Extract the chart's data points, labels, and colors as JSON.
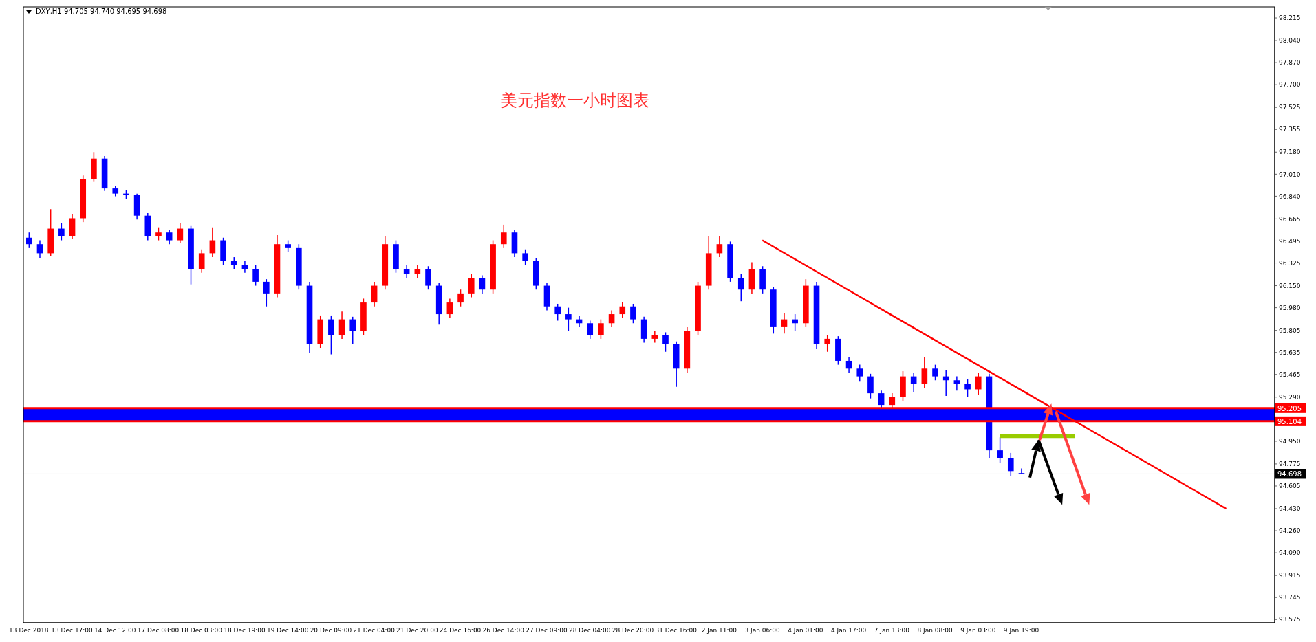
{
  "chart_data": {
    "type": "candlestick",
    "title": "美元指数一小时图表",
    "subtitle": "DXY,H1 94.705 94.740 94.695 94.698",
    "categories": [
      "13 Dec 2018",
      null,
      null,
      null,
      "13 Dec 17:00",
      null,
      null,
      null,
      "14 Dec 12:00",
      null,
      null,
      null,
      "17 Dec 08:00",
      null,
      null,
      null,
      "18 Dec 03:00",
      null,
      null,
      null,
      "18 Dec 19:00",
      null,
      null,
      null,
      "19 Dec 14:00",
      null,
      null,
      null,
      "20 Dec 09:00",
      null,
      null,
      null,
      "21 Dec 04:00",
      null,
      null,
      null,
      "21 Dec 20:00",
      null,
      null,
      null,
      "24 Dec 16:00",
      null,
      null,
      null,
      "26 Dec 14:00",
      null,
      null,
      null,
      "27 Dec 09:00",
      null,
      null,
      null,
      "28 Dec 04:00",
      null,
      null,
      null,
      "28 Dec 20:00",
      null,
      null,
      null,
      "31 Dec 16:00",
      null,
      null,
      null,
      "2 Jan 11:00",
      null,
      null,
      null,
      "3 Jan 06:00",
      null,
      null,
      null,
      "4 Jan 01:00",
      null,
      null,
      null,
      "4 Jan 17:00",
      null,
      null,
      null,
      "7 Jan 13:00",
      null,
      null,
      null,
      "8 Jan 08:00",
      null,
      null,
      null,
      "9 Jan 03:00",
      null,
      null,
      null,
      "9 Jan 19:00",
      null,
      null,
      null,
      null,
      null,
      null,
      null,
      null,
      null,
      null,
      null,
      null,
      null,
      null,
      null,
      null,
      null,
      null,
      null,
      null,
      null,
      null,
      null
    ],
    "ohlc": [
      [
        96.52,
        96.56,
        96.44,
        96.47
      ],
      [
        96.47,
        96.5,
        96.36,
        96.4
      ],
      [
        96.4,
        96.74,
        96.38,
        96.59
      ],
      [
        96.59,
        96.63,
        96.5,
        96.53
      ],
      [
        96.53,
        96.7,
        96.51,
        96.67
      ],
      [
        96.67,
        97.0,
        96.64,
        96.97
      ],
      [
        96.97,
        97.18,
        96.95,
        97.13
      ],
      [
        97.13,
        97.15,
        96.88,
        96.9
      ],
      [
        96.9,
        96.92,
        96.84,
        96.86
      ],
      [
        96.86,
        96.89,
        96.82,
        96.85
      ],
      [
        96.85,
        96.86,
        96.66,
        96.69
      ],
      [
        96.69,
        96.71,
        96.5,
        96.53
      ],
      [
        96.53,
        96.6,
        96.5,
        96.56
      ],
      [
        96.56,
        96.58,
        96.47,
        96.5
      ],
      [
        96.5,
        96.63,
        96.48,
        96.59
      ],
      [
        96.59,
        96.61,
        96.16,
        96.28
      ],
      [
        96.28,
        96.43,
        96.25,
        96.4
      ],
      [
        96.4,
        96.6,
        96.37,
        96.5
      ],
      [
        96.5,
        96.52,
        96.31,
        96.34
      ],
      [
        96.34,
        96.37,
        96.28,
        96.31
      ],
      [
        96.31,
        96.34,
        96.25,
        96.28
      ],
      [
        96.28,
        96.31,
        96.15,
        96.18
      ],
      [
        96.18,
        96.2,
        95.99,
        96.09
      ],
      [
        96.09,
        96.54,
        96.06,
        96.47
      ],
      [
        96.47,
        96.5,
        96.41,
        96.44
      ],
      [
        96.44,
        96.47,
        96.12,
        96.15
      ],
      [
        96.15,
        96.18,
        95.63,
        95.7
      ],
      [
        95.7,
        95.92,
        95.67,
        95.89
      ],
      [
        95.89,
        95.92,
        95.62,
        95.77
      ],
      [
        95.77,
        95.95,
        95.74,
        95.89
      ],
      [
        95.89,
        95.91,
        95.7,
        95.8
      ],
      [
        95.8,
        96.05,
        95.77,
        96.02
      ],
      [
        96.02,
        96.18,
        95.99,
        96.15
      ],
      [
        96.15,
        96.53,
        96.12,
        96.47
      ],
      [
        96.47,
        96.5,
        96.25,
        96.28
      ],
      [
        96.28,
        96.31,
        96.21,
        96.24
      ],
      [
        96.24,
        96.31,
        96.21,
        96.28
      ],
      [
        96.28,
        96.3,
        96.12,
        96.15
      ],
      [
        96.15,
        96.17,
        95.85,
        95.93
      ],
      [
        95.93,
        96.05,
        95.9,
        96.02
      ],
      [
        96.02,
        96.12,
        95.99,
        96.09
      ],
      [
        96.09,
        96.24,
        96.06,
        96.21
      ],
      [
        96.21,
        96.23,
        96.09,
        96.12
      ],
      [
        96.12,
        96.5,
        96.09,
        96.47
      ],
      [
        96.47,
        96.62,
        96.44,
        96.56
      ],
      [
        96.56,
        96.58,
        96.37,
        96.4
      ],
      [
        96.4,
        96.43,
        96.31,
        96.34
      ],
      [
        96.34,
        96.36,
        96.12,
        96.15
      ],
      [
        96.15,
        96.17,
        95.96,
        95.99
      ],
      [
        95.99,
        96.01,
        95.88,
        95.93
      ],
      [
        95.93,
        95.98,
        95.8,
        95.89
      ],
      [
        95.89,
        95.92,
        95.83,
        95.86
      ],
      [
        95.86,
        95.88,
        95.74,
        95.77
      ],
      [
        95.77,
        95.89,
        95.74,
        95.86
      ],
      [
        95.86,
        95.96,
        95.83,
        95.93
      ],
      [
        95.93,
        96.02,
        95.9,
        95.99
      ],
      [
        95.99,
        96.01,
        95.86,
        95.89
      ],
      [
        95.89,
        95.91,
        95.71,
        95.74
      ],
      [
        95.74,
        95.8,
        95.71,
        95.77
      ],
      [
        95.77,
        95.79,
        95.64,
        95.7
      ],
      [
        95.7,
        95.72,
        95.37,
        95.51
      ],
      [
        95.51,
        95.83,
        95.48,
        95.8
      ],
      [
        95.8,
        96.18,
        95.77,
        96.15
      ],
      [
        96.15,
        96.53,
        96.12,
        96.4
      ],
      [
        96.4,
        96.53,
        96.37,
        96.47
      ],
      [
        96.47,
        96.49,
        96.18,
        96.21
      ],
      [
        96.21,
        96.24,
        96.03,
        96.12
      ],
      [
        96.12,
        96.33,
        96.09,
        96.28
      ],
      [
        96.28,
        96.3,
        96.09,
        96.12
      ],
      [
        96.12,
        96.14,
        95.78,
        95.83
      ],
      [
        95.83,
        95.94,
        95.78,
        95.89
      ],
      [
        95.89,
        95.93,
        95.8,
        95.86
      ],
      [
        95.86,
        96.2,
        95.83,
        96.15
      ],
      [
        96.15,
        96.18,
        95.66,
        95.7
      ],
      [
        95.7,
        95.77,
        95.64,
        95.74
      ],
      [
        95.74,
        95.76,
        95.54,
        95.57
      ],
      [
        95.57,
        95.6,
        95.48,
        95.51
      ],
      [
        95.51,
        95.54,
        95.41,
        95.45
      ],
      [
        95.45,
        95.47,
        95.28,
        95.32
      ],
      [
        95.32,
        95.34,
        95.2,
        95.23
      ],
      [
        95.23,
        95.32,
        95.2,
        95.29
      ],
      [
        95.29,
        95.49,
        95.26,
        95.45
      ],
      [
        95.45,
        95.48,
        95.33,
        95.39
      ],
      [
        95.39,
        95.6,
        95.36,
        95.51
      ],
      [
        95.51,
        95.54,
        95.42,
        95.45
      ],
      [
        95.45,
        95.5,
        95.3,
        95.42
      ],
      [
        95.42,
        95.45,
        95.34,
        95.39
      ],
      [
        95.39,
        95.43,
        95.29,
        95.35
      ],
      [
        95.35,
        95.48,
        95.31,
        95.45
      ],
      [
        95.45,
        95.47,
        94.82,
        94.88
      ],
      [
        94.88,
        94.98,
        94.78,
        94.82
      ],
      [
        94.82,
        94.86,
        94.68,
        94.72
      ],
      [
        94.705,
        94.74,
        94.695,
        94.698
      ],
      null,
      null,
      null,
      null,
      null,
      null,
      null,
      null,
      null,
      null,
      null,
      null,
      null,
      null,
      null,
      null,
      null,
      null,
      null,
      null,
      null,
      null,
      null
    ],
    "colors": [
      "#0000ff",
      "#0000ff",
      "#ff0000",
      "#0000ff",
      "#ff0000",
      "#ff0000",
      "#ff0000",
      "#0000ff",
      "#0000ff",
      "#0000ff",
      "#0000ff",
      "#0000ff",
      "#ff0000",
      "#0000ff",
      "#ff0000",
      "#0000ff",
      "#ff0000",
      "#ff0000",
      "#0000ff",
      "#0000ff",
      "#0000ff",
      "#0000ff",
      "#0000ff",
      "#ff0000",
      "#0000ff",
      "#0000ff",
      "#0000ff",
      "#ff0000",
      "#0000ff",
      "#ff0000",
      "#0000ff",
      "#ff0000",
      "#ff0000",
      "#ff0000",
      "#0000ff",
      "#0000ff",
      "#ff0000",
      "#0000ff",
      "#0000ff",
      "#ff0000",
      "#ff0000",
      "#ff0000",
      "#0000ff",
      "#ff0000",
      "#ff0000",
      "#0000ff",
      "#0000ff",
      "#0000ff",
      "#0000ff",
      "#0000ff",
      "#0000ff",
      "#0000ff",
      "#0000ff",
      "#ff0000",
      "#ff0000",
      "#ff0000",
      "#0000ff",
      "#0000ff",
      "#ff0000",
      "#0000ff",
      "#0000ff",
      "#ff0000",
      "#ff0000",
      "#ff0000",
      "#ff0000",
      "#0000ff",
      "#0000ff",
      "#ff0000",
      "#0000ff",
      "#0000ff",
      "#ff0000",
      "#0000ff",
      "#ff0000",
      "#0000ff",
      "#ff0000",
      "#0000ff",
      "#0000ff",
      "#0000ff",
      "#0000ff",
      "#0000ff",
      "#ff0000",
      "#ff0000",
      "#0000ff",
      "#ff0000",
      "#0000ff",
      "#0000ff",
      "#0000ff",
      "#0000ff",
      "#ff0000",
      "#0000ff",
      "#0000ff",
      "#0000ff",
      "#0000ff",
      null,
      null,
      null,
      null,
      null,
      null,
      null,
      null,
      null,
      null,
      null,
      null,
      null,
      null,
      null,
      null,
      null,
      null,
      null,
      null,
      null,
      null,
      null
    ],
    "series": [
      {
        "type": "line",
        "color": "#ff0000",
        "values": [
          null,
          null,
          null,
          null,
          null,
          null,
          null,
          null,
          null,
          null,
          null,
          null,
          null,
          null,
          null,
          null,
          null,
          null,
          null,
          null,
          null,
          null,
          null,
          null,
          null,
          null,
          null,
          null,
          null,
          null,
          null,
          null,
          null,
          null,
          null,
          null,
          null,
          null,
          null,
          null,
          null,
          null,
          null,
          null,
          null,
          null,
          null,
          null,
          null,
          null,
          null,
          null,
          null,
          null,
          null,
          null,
          null,
          null,
          null,
          null,
          null,
          null,
          null,
          null,
          null,
          null,
          null,
          null,
          96.5,
          null,
          null,
          null,
          null,
          null,
          null,
          null,
          null,
          null,
          null,
          null,
          null,
          null,
          null,
          null,
          null,
          null,
          null,
          null,
          null,
          null,
          null,
          null,
          null,
          null,
          null,
          null,
          null,
          null,
          null,
          null,
          null,
          null,
          null,
          null,
          null,
          null,
          null,
          null,
          null,
          null,
          null,
          94.43,
          null,
          null,
          null,
          null
        ]
      },
      {
        "type": "line",
        "color": "#99cc00",
        "values": [
          null,
          null,
          null,
          null,
          null,
          null,
          null,
          null,
          null,
          null,
          null,
          null,
          null,
          null,
          null,
          null,
          null,
          null,
          null,
          null,
          null,
          null,
          null,
          null,
          null,
          null,
          null,
          null,
          null,
          null,
          null,
          null,
          null,
          null,
          null,
          null,
          null,
          null,
          null,
          null,
          null,
          null,
          null,
          null,
          null,
          null,
          null,
          null,
          null,
          null,
          null,
          null,
          null,
          null,
          null,
          null,
          null,
          null,
          null,
          null,
          null,
          null,
          null,
          null,
          null,
          null,
          null,
          null,
          null,
          null,
          null,
          null,
          null,
          null,
          null,
          null,
          null,
          null,
          null,
          null,
          null,
          null,
          null,
          null,
          null,
          null,
          null,
          null,
          null,
          null,
          94.99,
          null,
          null,
          null,
          null,
          null,
          null,
          94.99,
          null,
          null,
          null,
          null,
          null,
          null,
          null,
          null,
          null,
          null,
          null,
          null,
          null,
          null,
          null,
          null,
          null,
          null
        ]
      }
    ],
    "marker": "none",
    "ylim": [
      93.55,
      98.3
    ],
    "yticks": [
      98.215,
      {
        "value": 98.04,
        "label": "98.040"
      },
      {
        "value": 97.87,
        "label": "97.870"
      },
      {
        "value": 97.7,
        "label": "97.700"
      },
      97.525,
      97.355,
      {
        "value": 97.18,
        "label": "97.180"
      },
      {
        "value": 97.01,
        "label": "97.010"
      },
      {
        "value": 96.84,
        "label": "96.840"
      },
      96.665,
      96.495,
      96.325,
      {
        "value": 96.15,
        "label": "96.150"
      },
      {
        "value": 95.98,
        "label": "95.980"
      },
      95.805,
      95.635,
      95.465,
      {
        "value": 95.29,
        "label": "95.290"
      },
      {
        "value": 94.95,
        "label": "94.950"
      },
      94.775,
      94.605,
      {
        "value": 94.43,
        "label": "94.430"
      },
      {
        "value": 94.26,
        "label": "94.260"
      },
      {
        "value": 94.09,
        "label": "94.090"
      },
      93.915,
      93.745,
      93.575
    ],
    "bands": [
      {
        "axis": "y",
        "from": 95.104,
        "to": 95.205,
        "color": "#0000ff"
      }
    ],
    "ref_lines": [
      {
        "axis": "y",
        "value": 95.205,
        "label": "95.205",
        "color": "#ff0000"
      },
      {
        "axis": "y",
        "value": 95.104,
        "label": "95.104",
        "color": "#ff0000"
      },
      {
        "axis": "y",
        "value": 94.698,
        "label": "94.698",
        "color": "#c0c0c0"
      }
    ]
  }
}
